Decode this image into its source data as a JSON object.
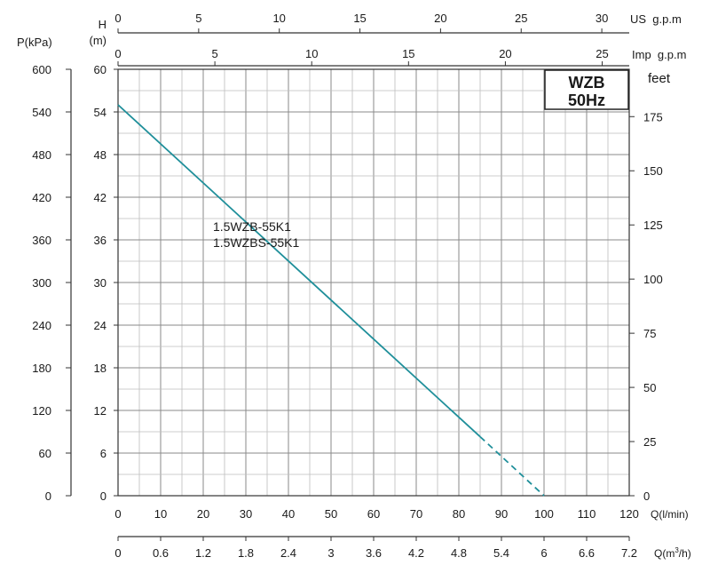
{
  "chart_data": {
    "type": "line",
    "title": "WZB",
    "subtitle": "50Hz",
    "grid": true,
    "x": {
      "label": "Q(l/min)",
      "range": [
        0,
        120
      ],
      "ticks": [
        0,
        10,
        20,
        30,
        40,
        50,
        60,
        70,
        80,
        90,
        100,
        110,
        120
      ]
    },
    "y": {
      "label_line1": "H",
      "label_line2": "(m)",
      "range": [
        0,
        60
      ],
      "ticks": [
        0,
        6,
        12,
        18,
        24,
        30,
        36,
        42,
        48,
        54,
        60
      ]
    },
    "y_left_outer": {
      "label": "P(kPa)",
      "ticks": [
        0,
        60,
        120,
        180,
        240,
        300,
        360,
        420,
        480,
        540,
        600
      ]
    },
    "y_right": {
      "label": "feet",
      "ticks": [
        0,
        25,
        50,
        75,
        100,
        125,
        150,
        175
      ]
    },
    "x_top_us": {
      "label": "US  g.p.m",
      "ticks": [
        0,
        5,
        10,
        15,
        20,
        25,
        30
      ]
    },
    "x_top_imp": {
      "label": "Imp  g.p.m",
      "ticks": [
        0,
        5,
        10,
        15,
        20,
        25
      ]
    },
    "x_bottom_m3h": {
      "label": "Q(m³/h)",
      "ticks": [
        "0",
        "0.6",
        "1.2",
        "1.8",
        "2.4",
        "3",
        "3.6",
        "4.2",
        "4.8",
        "5.4",
        "6",
        "6.6",
        "7.2"
      ]
    },
    "series": [
      {
        "name_line1": "1.5WZB-55K1",
        "name_line2": "1.5WZBS-55K1",
        "color": "#1f8f9a",
        "points": [
          [
            0,
            55
          ],
          [
            85,
            8.3
          ]
        ],
        "dashed_points": [
          [
            85,
            8.3
          ],
          [
            100,
            0
          ]
        ]
      }
    ]
  }
}
